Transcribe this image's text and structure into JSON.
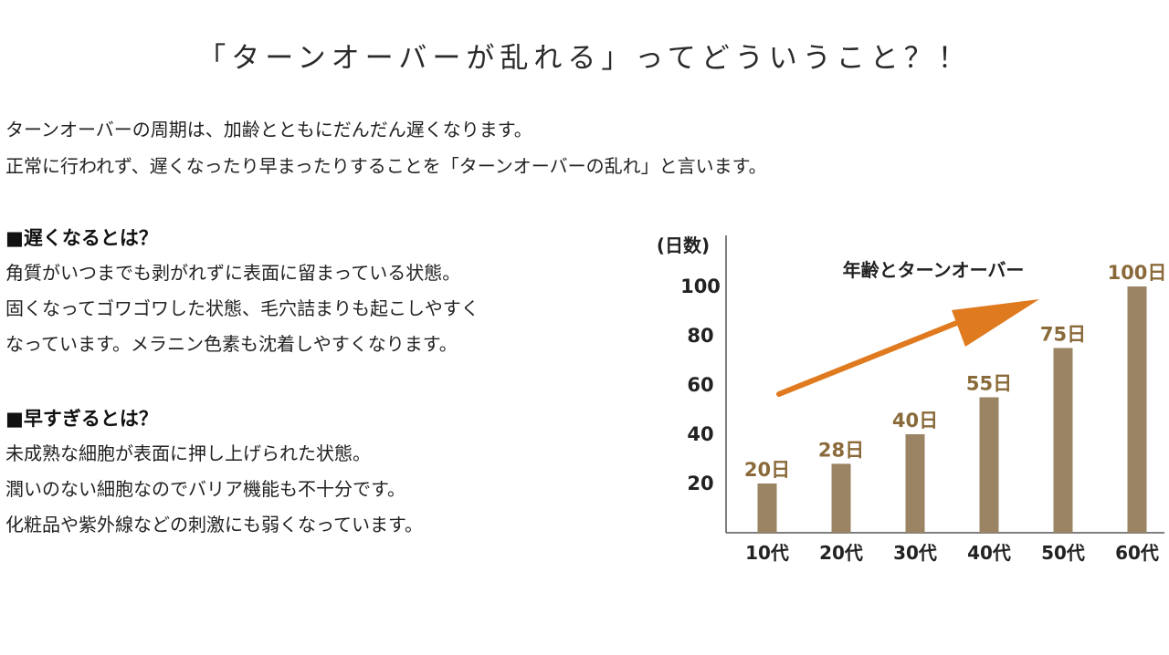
{
  "page": {
    "title": "「ターンオーバーが乱れる」ってどういうこと？！"
  },
  "intro": {
    "lines": [
      "ターンオーバーの周期は、加齢とともにだんだん遅くなります。",
      "正常に行われず、遅くなったり早まったりすることを「ターンオーバーの乱れ」と言います。"
    ]
  },
  "slow": {
    "heading": "■遅くなるとは？",
    "lines": [
      "角質がいつまでも剥がれずに表面に留まっている状態。",
      "固くなってゴワゴワした状態、毛穴詰まりも起こしやすく",
      "なっています。メラニン色素も沈着しやすくなります。"
    ]
  },
  "fast": {
    "heading": "■早すぎるとは？",
    "lines": [
      "未成熟な細胞が表面に押し上げられた状態。",
      "潤いのない細胞なのでバリア機能も不十分です。",
      "化粧品や紫外線などの刺激にも弱くなっています。"
    ]
  },
  "chart_data": {
    "type": "bar",
    "title": "年齢とターンオーバー",
    "ylabel": "(日数)",
    "xlabel": "",
    "categories": [
      "10代",
      "20代",
      "30代",
      "40代",
      "50代",
      "60代"
    ],
    "values": [
      20,
      28,
      40,
      55,
      75,
      100
    ],
    "data_labels": [
      "20日",
      "28日",
      "40日",
      "55日",
      "75日",
      "100日"
    ],
    "yticks": [
      20,
      40,
      60,
      80,
      100
    ],
    "ylim": [
      0,
      105
    ],
    "grid": false,
    "legend": "none",
    "bar_color": "#9a8463",
    "label_color": "#8a6a3a",
    "arrow_color": "#e07a1f",
    "axis_color": "#555555"
  }
}
